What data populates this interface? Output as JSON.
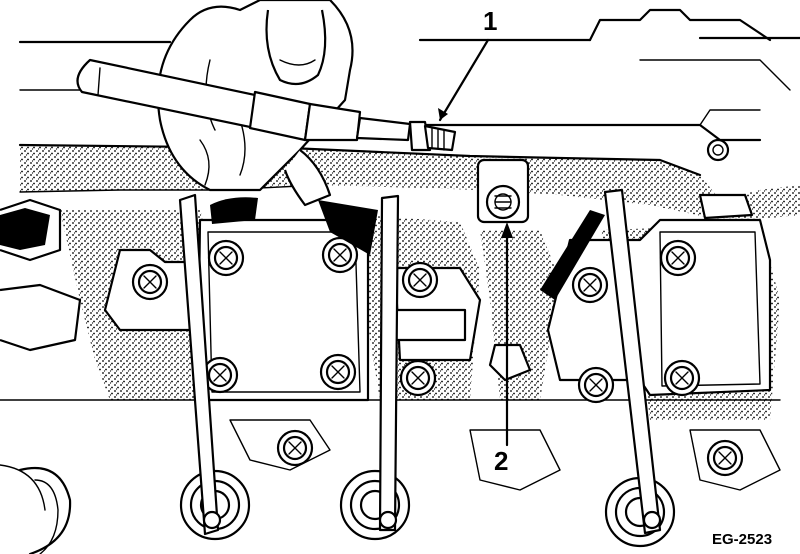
{
  "figure": {
    "callouts": [
      {
        "id": "1",
        "text": "1"
      },
      {
        "id": "2",
        "text": "2"
      }
    ],
    "figure_code": "EG-2523",
    "icons": [
      "socket-wrench-icon",
      "hand-icon",
      "bolt-icon",
      "stud-icon",
      "rocker-arm-icon"
    ]
  }
}
